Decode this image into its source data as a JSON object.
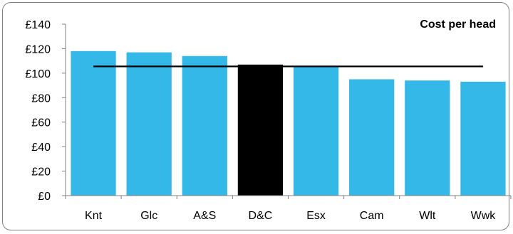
{
  "chart_data": {
    "type": "bar",
    "title": "Cost per head",
    "xlabel": "",
    "ylabel": "",
    "categories": [
      "Knt",
      "Glc",
      "A&S",
      "D&C",
      "Esx",
      "Cam",
      "Wlt",
      "Wwk"
    ],
    "values": [
      118,
      117,
      114,
      107,
      105,
      95,
      94,
      93
    ],
    "highlight_index": 3,
    "reference_line": 105.5,
    "ylim": [
      0,
      140
    ],
    "yticks": [
      0,
      20,
      40,
      60,
      80,
      100,
      120,
      140
    ],
    "ytick_labels": [
      "£0",
      "£20",
      "£40",
      "£60",
      "£80",
      "£100",
      "£120",
      "£140"
    ],
    "colors": {
      "bar": "#33B8E8",
      "highlight": "#000000",
      "line": "#000000",
      "axis": "#808080"
    },
    "grid": false,
    "legend": "none"
  }
}
